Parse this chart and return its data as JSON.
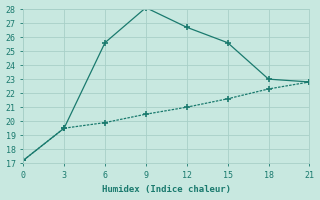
{
  "line1_x": [
    0,
    3,
    6,
    9,
    12,
    15,
    18,
    21
  ],
  "line1_y": [
    17.2,
    19.5,
    25.6,
    28.1,
    26.7,
    25.6,
    23.0,
    22.8
  ],
  "line2_x": [
    0,
    3,
    6,
    9,
    12,
    15,
    18,
    21
  ],
  "line2_y": [
    17.2,
    19.5,
    19.9,
    20.5,
    21.0,
    21.6,
    22.3,
    22.8
  ],
  "line_color": "#1a7a6e",
  "bg_color": "#c8e8e0",
  "grid_color": "#a8d0c8",
  "xlabel": "Humidex (Indice chaleur)",
  "xlim": [
    0,
    21
  ],
  "ylim": [
    17,
    28
  ],
  "xticks": [
    0,
    3,
    6,
    9,
    12,
    15,
    18,
    21
  ],
  "yticks": [
    17,
    18,
    19,
    20,
    21,
    22,
    23,
    24,
    25,
    26,
    27,
    28
  ]
}
